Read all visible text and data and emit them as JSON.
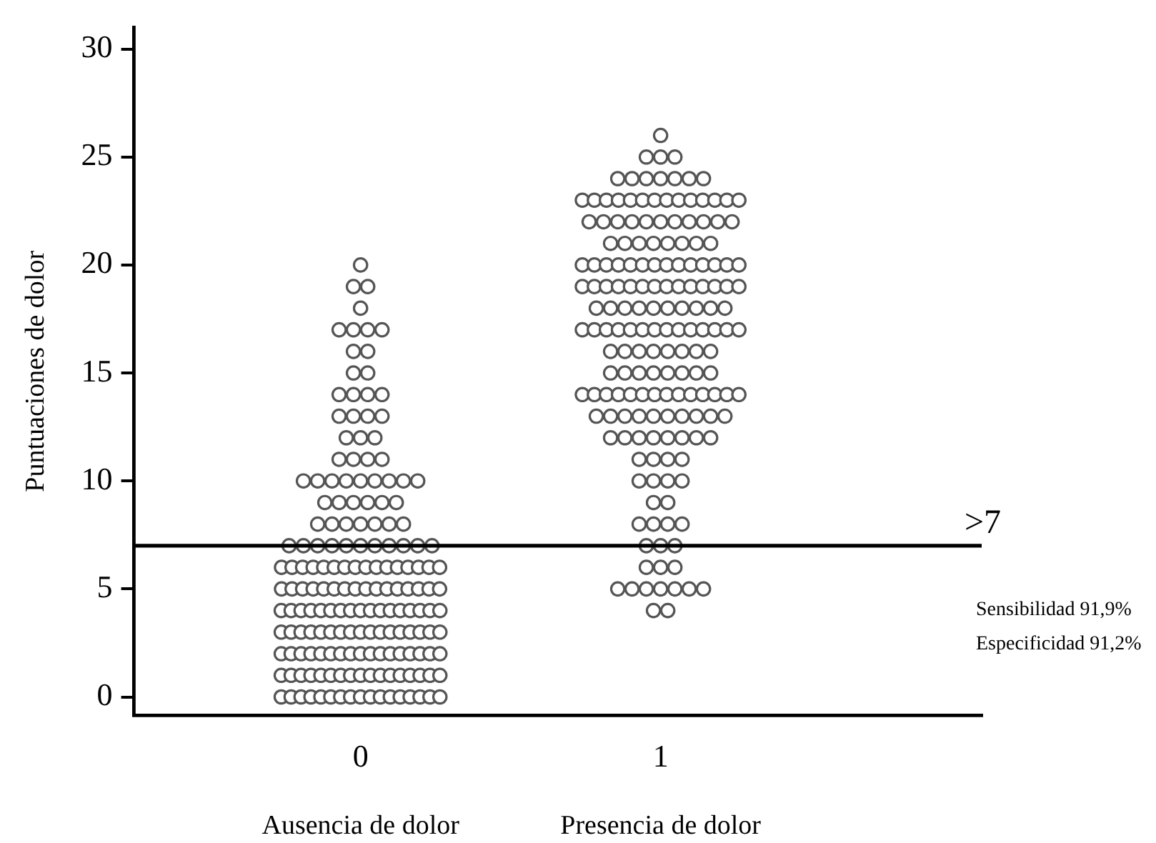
{
  "chart_data": {
    "type": "scatter",
    "ylabel": "Puntuaciones de dolor",
    "categories": [
      "0",
      "1"
    ],
    "ylim": [
      -0.85,
      31
    ],
    "yticks": [
      0,
      5,
      10,
      15,
      20,
      25,
      30
    ],
    "grid": false,
    "legend": false,
    "marker": "circle",
    "series": [
      {
        "color": "#555555",
        "x": [
          "0",
          "0",
          "0",
          "0",
          "0",
          "0",
          "0",
          "0",
          "0",
          "0",
          "0",
          "0",
          "0",
          "0",
          "0",
          "0",
          "0",
          "0",
          "0",
          "0",
          "0",
          "0",
          "0",
          "0",
          "0",
          "0",
          "0",
          "0",
          "0",
          "0",
          "0",
          "0",
          "0",
          "0",
          "0",
          "0",
          "0",
          "0",
          "0",
          "0",
          "0",
          "0",
          "0",
          "0",
          "0",
          "0",
          "0",
          "0",
          "0",
          "0",
          "0",
          "0",
          "0",
          "0",
          "0",
          "0",
          "0",
          "0",
          "0",
          "0",
          "0",
          "0",
          "0",
          "0",
          "0",
          "0",
          "0",
          "0",
          "0",
          "0",
          "0",
          "0",
          "0",
          "0",
          "0",
          "0",
          "0",
          "0",
          "0",
          "0",
          "0",
          "0",
          "0",
          "0",
          "0",
          "0",
          "0",
          "0",
          "0",
          "0",
          "0",
          "0",
          "0",
          "0",
          "0",
          "0",
          "0",
          "0",
          "0",
          "0",
          "0",
          "0",
          "0",
          "0",
          "0",
          "0",
          "0",
          "0",
          "0",
          "0",
          "0",
          "0",
          "0",
          "0",
          "0",
          "0",
          "0",
          "0",
          "0",
          "0",
          "0",
          "0",
          "0",
          "0",
          "0",
          "0",
          "0",
          "0",
          "0",
          "0",
          "0",
          "0",
          "0",
          "0",
          "0",
          "0",
          "0",
          "0",
          "0",
          "0",
          "0",
          "0",
          "0",
          "0",
          "0",
          "0",
          "0",
          "0",
          "0",
          "0",
          "0",
          "0",
          "0",
          "0",
          "0",
          "0",
          "0",
          "0",
          "0",
          "0",
          "0",
          "0",
          "0",
          "0",
          "0",
          "0",
          "0",
          "0",
          "0",
          "0",
          "0",
          "0",
          "0",
          "0",
          "0",
          "0",
          "0"
        ],
        "values": [
          20,
          19,
          19,
          18,
          17,
          17,
          17,
          17,
          16,
          16,
          15,
          15,
          14,
          14,
          14,
          14,
          13,
          13,
          13,
          13,
          12,
          12,
          12,
          11,
          11,
          11,
          11,
          10,
          10,
          10,
          10,
          10,
          10,
          10,
          10,
          10,
          9,
          9,
          9,
          9,
          9,
          9,
          8,
          8,
          8,
          8,
          8,
          8,
          8,
          7,
          7,
          7,
          7,
          7,
          7,
          7,
          7,
          7,
          7,
          7,
          6,
          6,
          6,
          6,
          6,
          6,
          6,
          6,
          6,
          6,
          6,
          6,
          6,
          6,
          6,
          6,
          5,
          5,
          5,
          5,
          5,
          5,
          5,
          5,
          5,
          5,
          5,
          5,
          5,
          5,
          5,
          5,
          4,
          4,
          4,
          4,
          4,
          4,
          4,
          4,
          4,
          4,
          4,
          4,
          4,
          4,
          4,
          4,
          4,
          3,
          3,
          3,
          3,
          3,
          3,
          3,
          3,
          3,
          3,
          3,
          3,
          3,
          3,
          3,
          3,
          3,
          2,
          2,
          2,
          2,
          2,
          2,
          2,
          2,
          2,
          2,
          2,
          2,
          2,
          2,
          2,
          2,
          2,
          1,
          1,
          1,
          1,
          1,
          1,
          1,
          1,
          1,
          1,
          1,
          1,
          1,
          1,
          1,
          1,
          1,
          0,
          0,
          0,
          0,
          0,
          0,
          0,
          0,
          0,
          0,
          0,
          0,
          0,
          0,
          0,
          0,
          0
        ]
      },
      {
        "color": "#555555",
        "x": [
          "1",
          "1",
          "1",
          "1",
          "1",
          "1",
          "1",
          "1",
          "1",
          "1",
          "1",
          "1",
          "1",
          "1",
          "1",
          "1",
          "1",
          "1",
          "1",
          "1",
          "1",
          "1",
          "1",
          "1",
          "1",
          "1",
          "1",
          "1",
          "1",
          "1",
          "1",
          "1",
          "1",
          "1",
          "1",
          "1",
          "1",
          "1",
          "1",
          "1",
          "1",
          "1",
          "1",
          "1",
          "1",
          "1",
          "1",
          "1",
          "1",
          "1",
          "1",
          "1",
          "1",
          "1",
          "1",
          "1",
          "1",
          "1",
          "1",
          "1",
          "1",
          "1",
          "1",
          "1",
          "1",
          "1",
          "1",
          "1",
          "1",
          "1",
          "1",
          "1",
          "1",
          "1",
          "1",
          "1",
          "1",
          "1",
          "1",
          "1",
          "1",
          "1",
          "1",
          "1",
          "1",
          "1",
          "1",
          "1",
          "1",
          "1",
          "1",
          "1",
          "1",
          "1",
          "1",
          "1",
          "1",
          "1",
          "1",
          "1",
          "1",
          "1",
          "1",
          "1",
          "1",
          "1",
          "1",
          "1",
          "1",
          "1",
          "1",
          "1",
          "1",
          "1",
          "1",
          "1",
          "1",
          "1",
          "1",
          "1",
          "1",
          "1",
          "1",
          "1",
          "1",
          "1",
          "1",
          "1",
          "1",
          "1",
          "1",
          "1",
          "1",
          "1",
          "1",
          "1",
          "1",
          "1",
          "1",
          "1",
          "1",
          "1",
          "1",
          "1",
          "1",
          "1",
          "1",
          "1",
          "1",
          "1",
          "1",
          "1",
          "1",
          "1",
          "1",
          "1",
          "1",
          "1",
          "1",
          "1",
          "1",
          "1",
          "1",
          "1",
          "1",
          "1",
          "1",
          "1",
          "1",
          "1",
          "1",
          "1",
          "1"
        ],
        "values": [
          26,
          25,
          25,
          25,
          24,
          24,
          24,
          24,
          24,
          24,
          24,
          23,
          23,
          23,
          23,
          23,
          23,
          23,
          23,
          23,
          23,
          23,
          23,
          23,
          23,
          22,
          22,
          22,
          22,
          22,
          22,
          22,
          22,
          22,
          22,
          22,
          21,
          21,
          21,
          21,
          21,
          21,
          21,
          21,
          20,
          20,
          20,
          20,
          20,
          20,
          20,
          20,
          20,
          20,
          20,
          20,
          20,
          20,
          19,
          19,
          19,
          19,
          19,
          19,
          19,
          19,
          19,
          19,
          19,
          19,
          19,
          19,
          18,
          18,
          18,
          18,
          18,
          18,
          18,
          18,
          18,
          18,
          17,
          17,
          17,
          17,
          17,
          17,
          17,
          17,
          17,
          17,
          17,
          17,
          17,
          17,
          16,
          16,
          16,
          16,
          16,
          16,
          16,
          16,
          15,
          15,
          15,
          15,
          15,
          15,
          15,
          15,
          14,
          14,
          14,
          14,
          14,
          14,
          14,
          14,
          14,
          14,
          14,
          14,
          14,
          14,
          13,
          13,
          13,
          13,
          13,
          13,
          13,
          13,
          13,
          13,
          12,
          12,
          12,
          12,
          12,
          12,
          12,
          12,
          11,
          11,
          11,
          11,
          10,
          10,
          10,
          10,
          9,
          9,
          8,
          8,
          8,
          8,
          7,
          7,
          7,
          6,
          6,
          6,
          5,
          5,
          5,
          5,
          5,
          5,
          5,
          4,
          4
        ]
      }
    ],
    "ref_lines": [
      {
        "axis": "y",
        "value": 7,
        "label": ">7",
        "color": "#000000"
      }
    ],
    "annotations": [
      "Ausencia de dolor",
      "Presencia de dolor",
      "Sensibilidad 91,9%",
      "Especificidad 91,2%"
    ]
  }
}
